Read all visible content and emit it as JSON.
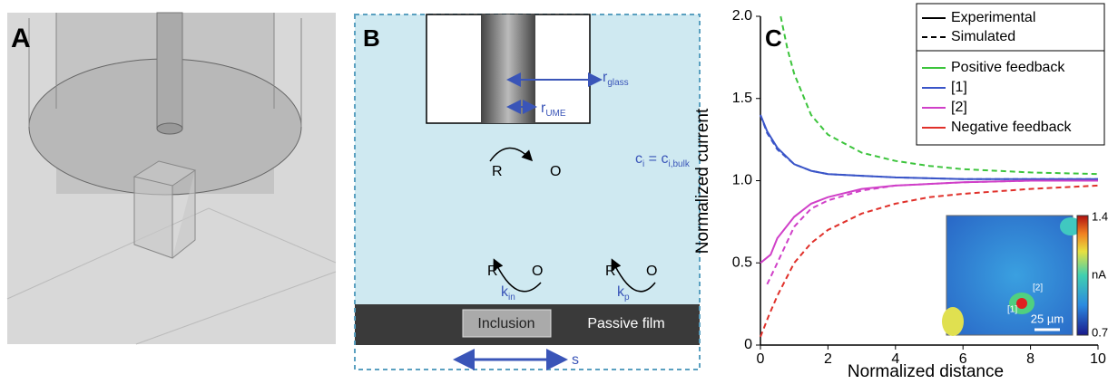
{
  "panel_a": {
    "label": "A"
  },
  "panel_b": {
    "label": "B",
    "r_glass": [
      {
        "text": "r"
      },
      {
        "sub": "glass"
      }
    ],
    "r_ume": [
      {
        "text": "r"
      },
      {
        "sub": "UME"
      }
    ],
    "top_r": "R",
    "top_o": "O",
    "concentration": [
      {
        "text": "c"
      },
      {
        "sub": "i"
      },
      {
        "text": " = c"
      },
      {
        "sub": "i,bulk"
      }
    ],
    "left_r": "R",
    "left_o": "O",
    "right_r": "R",
    "right_o": "O",
    "k_in": [
      {
        "text": "k"
      },
      {
        "sub": "in"
      }
    ],
    "k_p": [
      {
        "text": "k"
      },
      {
        "sub": "p"
      }
    ],
    "inclusion": "Inclusion",
    "passive_film": "Passive film",
    "s": "s"
  },
  "chart_data": {
    "type": "line",
    "panel_label": "C",
    "x_label": "Normalized distance",
    "y_label": "Normalized current",
    "xlim": [
      0,
      10
    ],
    "ylim": [
      0,
      2
    ],
    "xticks": [
      0,
      2,
      4,
      6,
      8,
      10
    ],
    "yticks": [
      0,
      0.5,
      {
        "value": 1,
        "label": "1.0"
      },
      1.5,
      {
        "value": 2,
        "label": "2.0"
      }
    ],
    "legend_styles": [
      {
        "label": "Experimental",
        "dash": false
      },
      {
        "label": "Simulated",
        "dash": true
      }
    ],
    "legend_colors": [
      {
        "label": "Positive feedback",
        "color": "#3cc43c"
      },
      {
        "label": "[1]",
        "color": "#3a55c8"
      },
      {
        "label": "[2]",
        "color": "#d040c8"
      },
      {
        "label": "Negative feedback",
        "color": "#e0302a"
      }
    ],
    "series": [
      {
        "color": "#3cc43c",
        "dash": true,
        "x": [
          0.6,
          0.8,
          1,
          1.5,
          2,
          3,
          4,
          5,
          6,
          8,
          10
        ],
        "values": [
          2.0,
          1.8,
          1.65,
          1.4,
          1.28,
          1.17,
          1.12,
          1.09,
          1.07,
          1.05,
          1.04
        ]
      },
      {
        "color": "#3a55c8",
        "dash": false,
        "x": [
          0,
          0.2,
          0.5,
          1,
          1.5,
          2,
          3,
          4,
          6,
          8,
          10
        ],
        "values": [
          1.4,
          1.3,
          1.2,
          1.1,
          1.06,
          1.04,
          1.03,
          1.02,
          1.01,
          1.01,
          1.01
        ]
      },
      {
        "color": "#3a55c8",
        "dash": true,
        "x": [
          0,
          0.2,
          0.5,
          1,
          1.5,
          2,
          3,
          4,
          6,
          8,
          10
        ],
        "values": [
          1.4,
          1.29,
          1.19,
          1.1,
          1.06,
          1.04,
          1.03,
          1.02,
          1.01,
          1.01,
          1.01
        ]
      },
      {
        "color": "#d040c8",
        "dash": false,
        "x": [
          0,
          0.3,
          0.5,
          1,
          1.5,
          2,
          3,
          4,
          6,
          8,
          10
        ],
        "values": [
          0.5,
          0.55,
          0.65,
          0.78,
          0.86,
          0.9,
          0.95,
          0.97,
          0.99,
          1.0,
          1.0
        ]
      },
      {
        "color": "#d040c8",
        "dash": true,
        "x": [
          0.2,
          0.5,
          1,
          1.5,
          2,
          3,
          4,
          6,
          8,
          10
        ],
        "values": [
          0.37,
          0.5,
          0.72,
          0.83,
          0.88,
          0.94,
          0.97,
          0.99,
          1.0,
          1.0
        ]
      },
      {
        "color": "#e0302a",
        "dash": true,
        "x": [
          0,
          0.25,
          0.5,
          1,
          1.5,
          2,
          3,
          4,
          5,
          6,
          8,
          10
        ],
        "values": [
          0.05,
          0.18,
          0.3,
          0.5,
          0.62,
          0.7,
          0.8,
          0.86,
          0.9,
          0.92,
          0.95,
          0.97
        ]
      }
    ],
    "inset": {
      "label_1": "[1]",
      "label_2": "[2]",
      "scale_bar": "25 µm",
      "colorbar_max": "1.4",
      "colorbar_min": "0.7",
      "colorbar_unit": "nA"
    }
  }
}
